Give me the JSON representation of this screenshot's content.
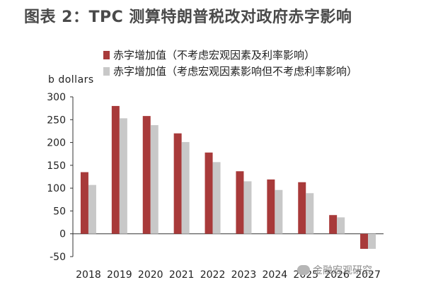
{
  "title": "图表 2：TPC 测算特朗普税改对政府赤字影响",
  "unit_label": "b dollars",
  "watermark": "金融宏观研究",
  "colors": {
    "series1": "#a83a3a",
    "series2": "#c8c8c8",
    "text": "#222222",
    "title": "#4a4a4a"
  },
  "chart_data": {
    "type": "bar",
    "categories": [
      "2018",
      "2019",
      "2020",
      "2021",
      "2022",
      "2023",
      "2024",
      "2025",
      "2026",
      "2027"
    ],
    "series": [
      {
        "name": "赤字增加值（不考虑宏观因素及利率影响）",
        "values": [
          135,
          280,
          258,
          220,
          178,
          137,
          119,
          113,
          41,
          -33
        ]
      },
      {
        "name": "赤字增加值（考虑宏观因素影响但不考虑利率影响）",
        "values": [
          107,
          253,
          238,
          201,
          157,
          115,
          96,
          89,
          36,
          -33
        ]
      }
    ],
    "ylim": [
      -50,
      300
    ],
    "yticks": [
      -50,
      0,
      50,
      100,
      150,
      200,
      250,
      300
    ],
    "ylabel": "b dollars",
    "legend": "top"
  }
}
